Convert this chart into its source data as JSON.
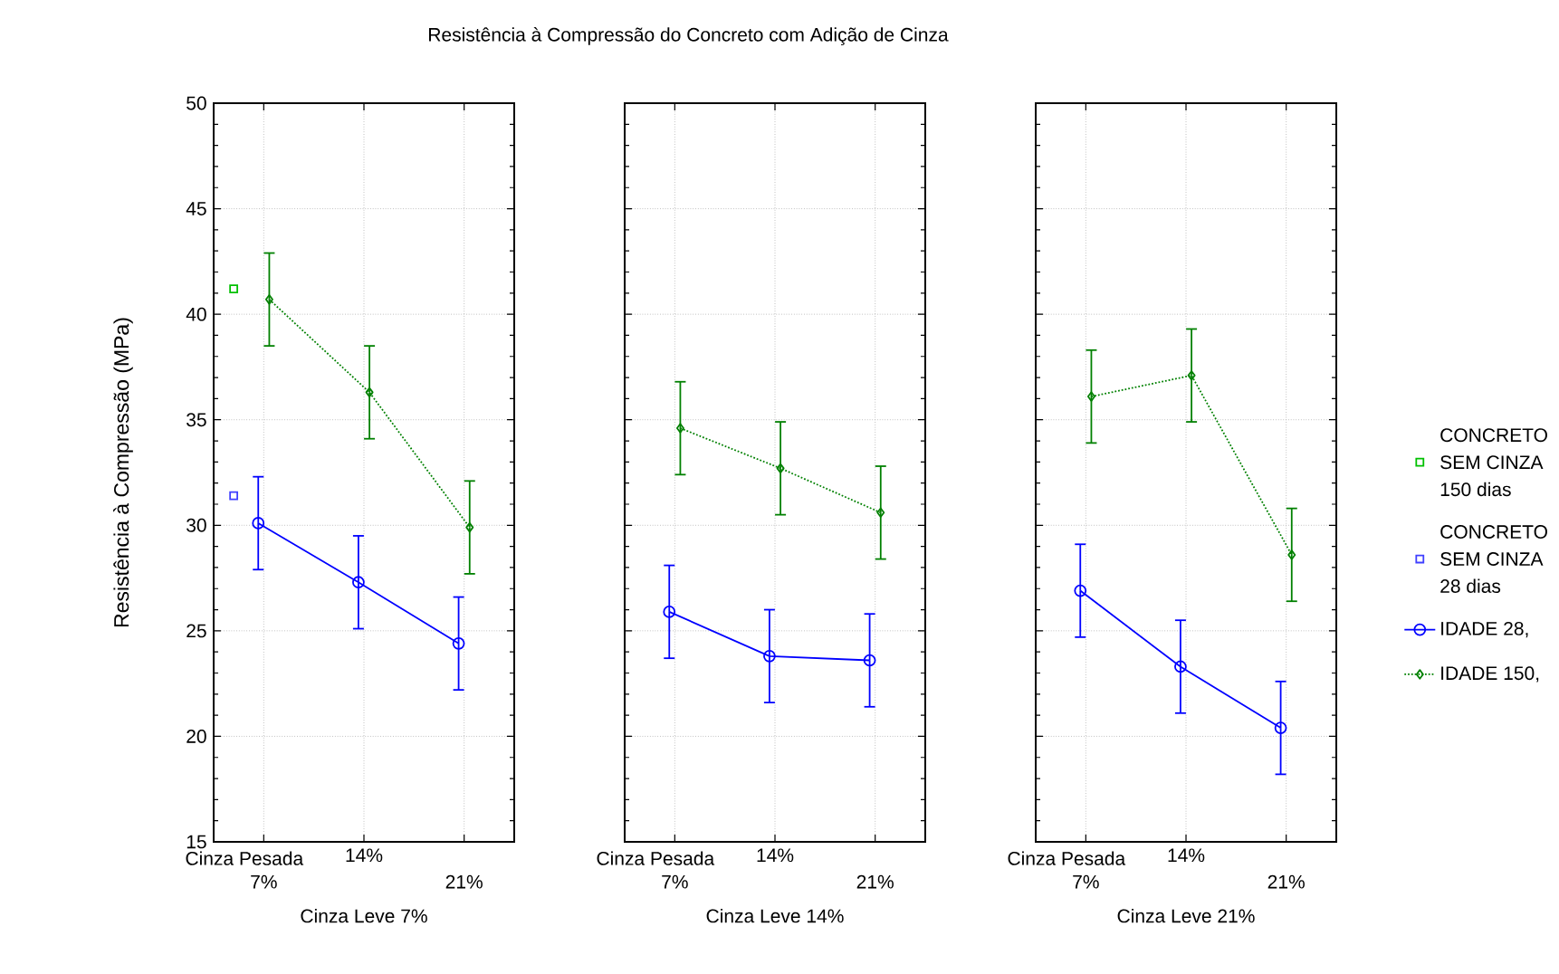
{
  "chart_data": [
    {
      "type": "line",
      "title": "Resistência à Compressão do Concreto com Adição de Cinza",
      "xlabel": "Cinza Leve 7%",
      "ylabel": "Resistência à Compressão (MPa)",
      "annotations": [
        "Cinza Pesada"
      ],
      "legend": "right",
      "categories": [
        "7%",
        "14%",
        "21%"
      ],
      "ylim": [
        15,
        50
      ],
      "yticks": [
        15,
        20,
        25,
        30,
        35,
        40,
        45,
        50
      ],
      "grid": true,
      "series": [
        {
          "type": "scatter",
          "name": "CONCRETO SEM CINZA 150 dias",
          "color": "#00c000",
          "marker": "square",
          "x": [
            "7%"
          ],
          "values": [
            41.2
          ]
        },
        {
          "type": "scatter",
          "name": "CONCRETO SEM CINZA 28 dias",
          "color": "#4040ff",
          "marker": "square",
          "x": [
            "7%"
          ],
          "values": [
            31.4
          ]
        },
        {
          "name": "IDADE 28,",
          "color": "#0000ff",
          "marker": "circle",
          "line_style": "solid",
          "values": [
            30.1,
            27.3,
            24.4
          ],
          "errors": [
            2.2,
            2.2,
            2.2
          ]
        },
        {
          "name": "IDADE 150,",
          "color": "#008000",
          "marker": "diamond",
          "line_style": "dotted",
          "values": [
            40.7,
            36.3,
            29.9
          ],
          "errors": [
            2.2,
            2.2,
            2.2
          ]
        }
      ]
    },
    {
      "type": "line",
      "xlabel": "Cinza Leve 14%",
      "annotations": [
        "Cinza Pesada"
      ],
      "tick_labels": "x",
      "categories": [
        "7%",
        "14%",
        "21%"
      ],
      "ylim": [
        15,
        50
      ],
      "yticks": [
        15,
        20,
        25,
        30,
        35,
        40,
        45,
        50
      ],
      "grid": true,
      "series": [
        {
          "color": "#0000ff",
          "marker": "circle",
          "line_style": "solid",
          "values": [
            25.9,
            23.8,
            23.6
          ],
          "errors": [
            2.2,
            2.2,
            2.2
          ]
        },
        {
          "color": "#008000",
          "marker": "diamond",
          "line_style": "dotted",
          "values": [
            34.6,
            32.7,
            30.6
          ],
          "errors": [
            2.2,
            2.2,
            2.2
          ]
        }
      ]
    },
    {
      "type": "line",
      "xlabel": "Cinza Leve 21%",
      "annotations": [
        "Cinza Pesada"
      ],
      "tick_labels": "x",
      "categories": [
        "7%",
        "14%",
        "21%"
      ],
      "ylim": [
        15,
        50
      ],
      "yticks": [
        15,
        20,
        25,
        30,
        35,
        40,
        45,
        50
      ],
      "grid": true,
      "series": [
        {
          "color": "#0000ff",
          "marker": "circle",
          "line_style": "solid",
          "values": [
            26.9,
            23.3,
            20.4
          ],
          "errors": [
            2.2,
            2.2,
            2.2
          ]
        },
        {
          "color": "#008000",
          "marker": "diamond",
          "line_style": "dotted",
          "values": [
            36.1,
            37.1,
            28.6
          ],
          "errors": [
            2.2,
            2.2,
            2.2
          ]
        }
      ]
    }
  ]
}
